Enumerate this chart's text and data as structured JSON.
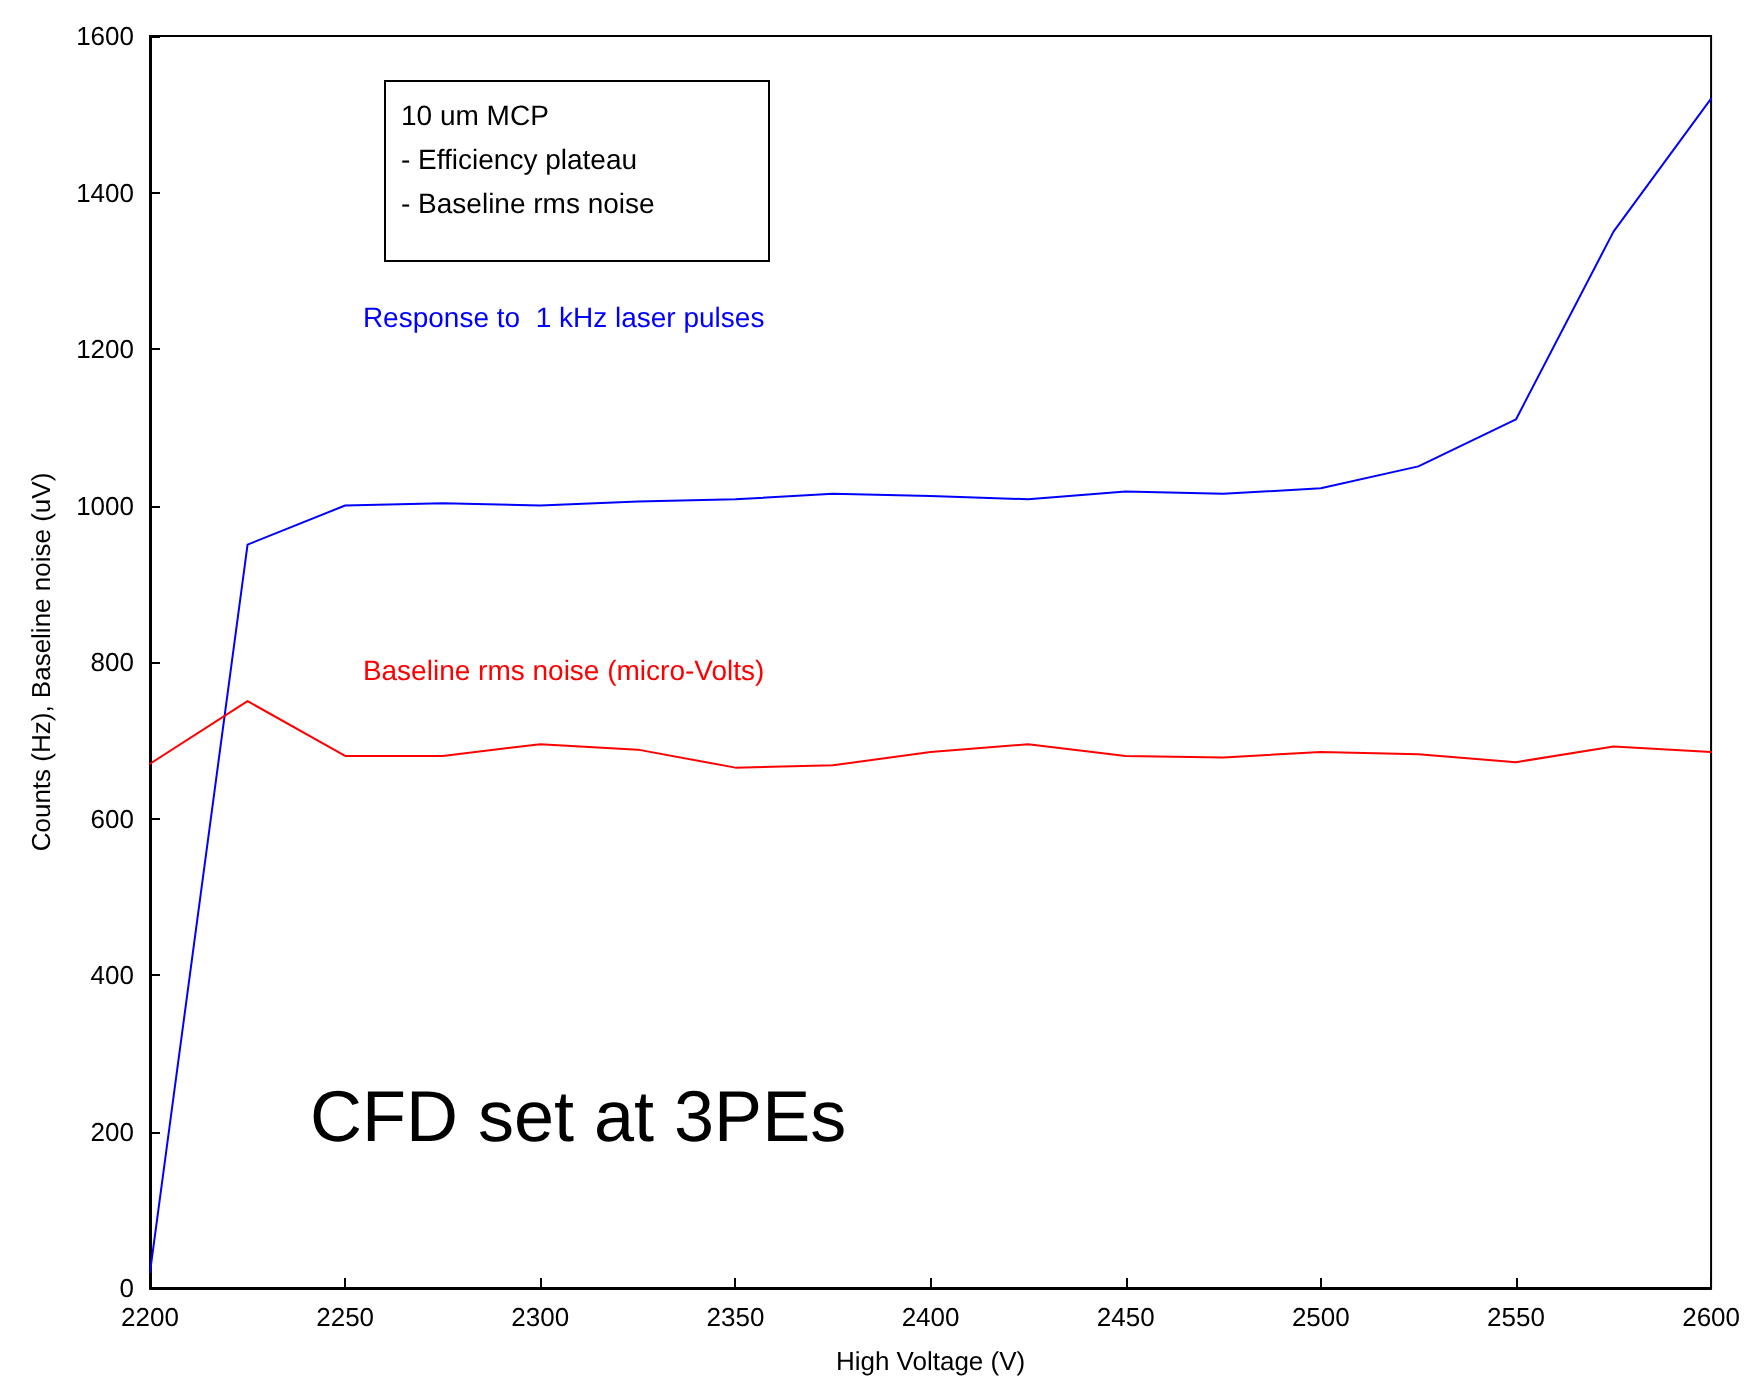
{
  "chart_data": {
    "type": "line",
    "xlabel": "High Voltage (V)",
    "ylabel": "Counts (Hz), Baseline noise (uV)",
    "x": [
      2200,
      2225,
      2250,
      2275,
      2300,
      2325,
      2350,
      2375,
      2400,
      2425,
      2450,
      2475,
      2500,
      2525,
      2550,
      2575,
      2600
    ],
    "series": [
      {
        "name": "Response to  1 kHz laser pulses",
        "color": "#0000ff",
        "values": [
          20,
          950,
          1000,
          1003,
          1000,
          1005,
          1008,
          1015,
          1012,
          1008,
          1018,
          1015,
          1022,
          1050,
          1110,
          1350,
          1520
        ]
      },
      {
        "name": "Baseline rms noise (micro-Volts)",
        "color": "#ff0000",
        "values": [
          670,
          750,
          680,
          680,
          695,
          688,
          665,
          668,
          685,
          695,
          680,
          678,
          685,
          682,
          672,
          692,
          685
        ]
      }
    ],
    "xlim": [
      2200,
      2600
    ],
    "xticks": [
      2200,
      2250,
      2300,
      2350,
      2400,
      2450,
      2500,
      2550,
      2600
    ],
    "ylim": [
      0,
      1600
    ],
    "yticks": [
      0,
      200,
      400,
      600,
      800,
      1000,
      1200,
      1400,
      1600
    ],
    "grid": false,
    "legend": false,
    "marker": "none",
    "line_style": "solid",
    "annotations": [
      "10 um MCP",
      "- Efficiency plateau",
      "- Baseline rms noise",
      "CFD set at 3PEs"
    ]
  }
}
